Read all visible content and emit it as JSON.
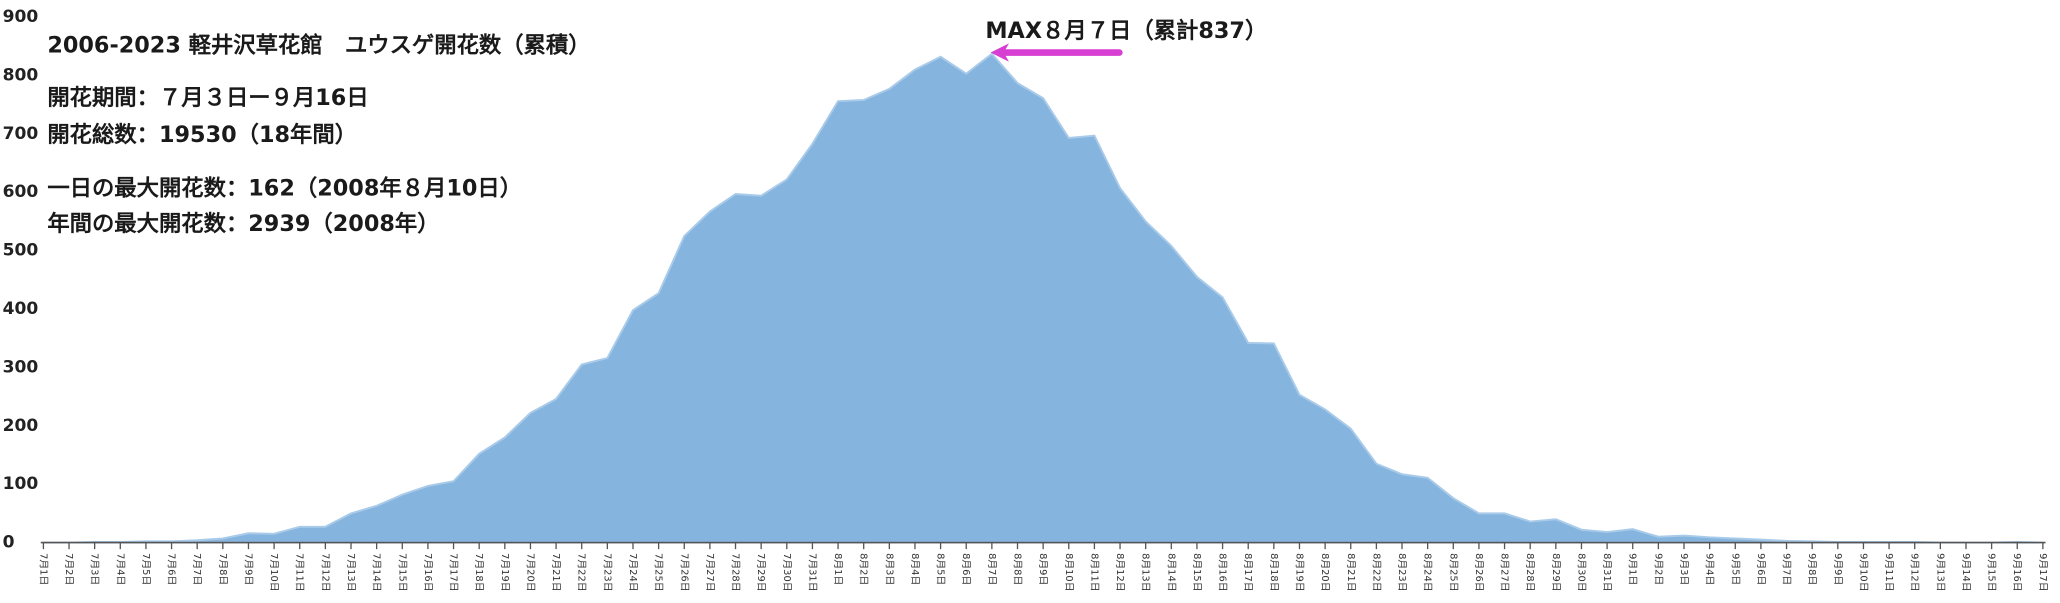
{
  "chart_data": {
    "type": "area",
    "title": "2006-2023 軽井沢草花館　ユウスゲ開花数（累積）",
    "notes": [
      "開花期間：７月３日ー９月16日",
      "開花総数：19530（18年間）",
      "一日の最大開花数：162（2008年８月10日）",
      "年間の最大開花数：2939（2008年）"
    ],
    "annotation": "MAX８月７日（累計837）",
    "categories": [
      "7月1日",
      "7月2日",
      "7月3日",
      "7月4日",
      "7月5日",
      "7月6日",
      "7月7日",
      "7月8日",
      "7月9日",
      "7月10日",
      "7月11日",
      "7月12日",
      "7月13日",
      "7月14日",
      "7月15日",
      "7月16日",
      "7月17日",
      "7月18日",
      "7月19日",
      "7月20日",
      "7月21日",
      "7月22日",
      "7月23日",
      "7月24日",
      "7月25日",
      "7月26日",
      "7月27日",
      "7月28日",
      "7月29日",
      "7月30日",
      "7月31日",
      "8月1日",
      "8月2日",
      "8月3日",
      "8月4日",
      "8月5日",
      "8月6日",
      "8月7日",
      "8月8日",
      "8月9日",
      "8月10日",
      "8月11日",
      "8月12日",
      "8月13日",
      "8月14日",
      "8月15日",
      "8月16日",
      "8月17日",
      "8月18日",
      "8月19日",
      "8月20日",
      "8月21日",
      "8月22日",
      "8月23日",
      "8月24日",
      "8月25日",
      "8月26日",
      "8月27日",
      "8月28日",
      "8月29日",
      "8月30日",
      "8月31日",
      "9月1日",
      "9月2日",
      "9月3日",
      "9月4日",
      "9月5日",
      "9月6日",
      "9月7日",
      "9月8日",
      "9月9日",
      "9月10日",
      "9月11日",
      "9月12日",
      "9月13日",
      "9月14日",
      "9月15日",
      "9月16日",
      "9月17日"
    ],
    "values": [
      0,
      0,
      1,
      1,
      2,
      2,
      4,
      7,
      16,
      15,
      27,
      27,
      50,
      63,
      82,
      97,
      105,
      152,
      180,
      222,
      246,
      305,
      316,
      398,
      427,
      525,
      567,
      597,
      594,
      622,
      683,
      756,
      758,
      777,
      810,
      832,
      803,
      837,
      787,
      761,
      693,
      697,
      607,
      550,
      508,
      455,
      420,
      342,
      341,
      253,
      228,
      195,
      135,
      117,
      111,
      76,
      50,
      50,
      36,
      40,
      22,
      18,
      23,
      10,
      12,
      9,
      7,
      5,
      3,
      2,
      1,
      1,
      1,
      1,
      0,
      0,
      0,
      1,
      0
    ],
    "color": "#85b4de",
    "ylim": [
      0,
      900
    ],
    "yticks": [
      0,
      100,
      200,
      300,
      400,
      500,
      600,
      700,
      800,
      900
    ]
  }
}
